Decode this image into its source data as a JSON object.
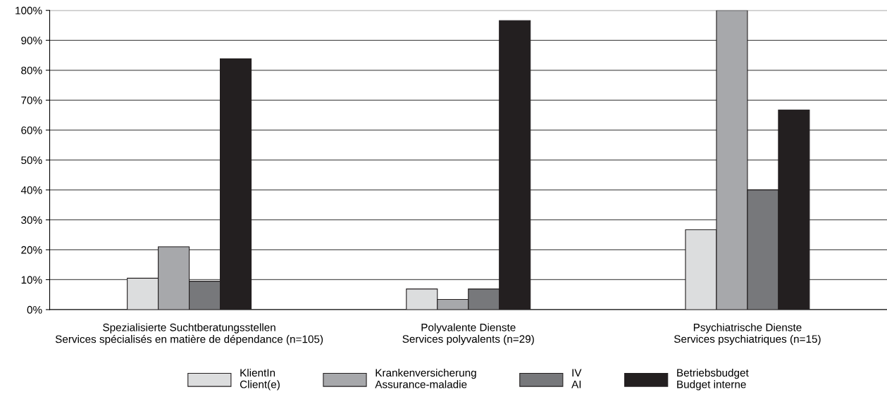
{
  "chart_data": {
    "type": "bar",
    "categories": [
      "Spezialisierte Suchtberatungsstellen\nServices spécialisés en matière de dépendance (n=105)",
      "Polyvalente Dienste\nServices polyvalents (n=29)",
      "Psychiatrische Dienste\nServices psychiatriques (n=15)"
    ],
    "series": [
      {
        "name": "KlientIn\nClient(e)",
        "color": "#dcddde",
        "values": [
          10.5,
          6.9,
          26.7
        ]
      },
      {
        "name": "Krankenversicherung\nAssurance-maladie",
        "color": "#a7a8ab",
        "values": [
          21.0,
          3.4,
          100
        ]
      },
      {
        "name": "IV\nAI",
        "color": "#77787b",
        "values": [
          9.5,
          6.9,
          40.0
        ]
      },
      {
        "name": "Betriebsbudget\nBudget interne",
        "color": "#231f20",
        "values": [
          83.8,
          96.6,
          66.7
        ]
      }
    ],
    "ylim": [
      0,
      100
    ],
    "yticks": [
      {
        "value": 0,
        "label": "0%"
      },
      {
        "value": 10,
        "label": "10%"
      },
      {
        "value": 20,
        "label": "20%"
      },
      {
        "value": 30,
        "label": "30%"
      },
      {
        "value": 40,
        "label": "40%"
      },
      {
        "value": 50,
        "label": "50%"
      },
      {
        "value": 60,
        "label": "60%"
      },
      {
        "value": 70,
        "label": "70%"
      },
      {
        "value": 80,
        "label": "80%"
      },
      {
        "value": 90,
        "label": "90%"
      },
      {
        "value": 100,
        "label": "100%"
      }
    ],
    "grid": "y",
    "legend": "bottom"
  }
}
